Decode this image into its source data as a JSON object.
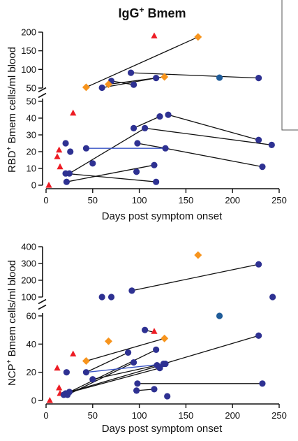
{
  "title": {
    "main": "IgG",
    "superscript": "+",
    "suffix": " Bmem"
  },
  "colors": {
    "patient": "#2e3192",
    "patient_alt": "#1f5c99",
    "pair_line": "#3a54c6",
    "orange": "#f7941d",
    "red": "#ed1c24",
    "axis": "#111111"
  },
  "chart_data": [
    {
      "type": "scatter",
      "panel": "top",
      "ylabel_prefix": "RBD",
      "ylabel_sup": "+",
      "ylabel_suffix": " Bmem cells/ml blood",
      "xlabel": "Days post symptom onset",
      "xlim": [
        0,
        250
      ],
      "x_ticks": [
        "0",
        "50",
        "100",
        "150",
        "200",
        "250"
      ],
      "y_segments": [
        {
          "range": [
            0,
            50
          ],
          "ticks": [
            "0",
            "10",
            "20",
            "30",
            "40",
            "50"
          ]
        },
        {
          "range": [
            50,
            200
          ],
          "ticks": [
            "50",
            "100",
            "150",
            "200"
          ]
        }
      ],
      "markers": [
        {
          "shape": "triangle",
          "color": "red",
          "x": 3,
          "y": 0
        },
        {
          "shape": "triangle",
          "color": "red",
          "x": 12,
          "y": 17
        },
        {
          "shape": "triangle",
          "color": "red",
          "x": 14,
          "y": 21
        },
        {
          "shape": "triangle",
          "color": "red",
          "x": 15,
          "y": 11
        },
        {
          "shape": "triangle",
          "color": "red",
          "x": 29,
          "y": 43
        },
        {
          "shape": "triangle",
          "color": "red",
          "x": 116,
          "y": 190
        },
        {
          "shape": "circle",
          "color": "patient",
          "x": 21,
          "y": 25
        },
        {
          "shape": "circle",
          "color": "patient",
          "x": 21,
          "y": 7
        },
        {
          "shape": "circle",
          "color": "patient",
          "x": 22,
          "y": 2
        },
        {
          "shape": "circle",
          "color": "patient",
          "x": 25,
          "y": 7
        },
        {
          "shape": "circle",
          "color": "patient",
          "x": 26,
          "y": 20
        },
        {
          "shape": "circle",
          "color": "patient",
          "x": 43,
          "y": 22
        },
        {
          "shape": "circle",
          "color": "patient",
          "x": 50,
          "y": 13
        },
        {
          "shape": "circle",
          "color": "patient",
          "x": 60,
          "y": 51
        },
        {
          "shape": "circle",
          "color": "patient",
          "x": 70,
          "y": 69
        },
        {
          "shape": "circle",
          "color": "patient",
          "x": 91,
          "y": 91
        },
        {
          "shape": "circle",
          "color": "patient",
          "x": 94,
          "y": 59
        },
        {
          "shape": "circle",
          "color": "patient",
          "x": 94,
          "y": 34
        },
        {
          "shape": "circle",
          "color": "patient",
          "x": 97,
          "y": 8
        },
        {
          "shape": "circle",
          "color": "patient",
          "x": 98,
          "y": 25
        },
        {
          "shape": "circle",
          "color": "patient",
          "x": 106,
          "y": 34
        },
        {
          "shape": "circle",
          "color": "patient",
          "x": 116,
          "y": 12
        },
        {
          "shape": "circle",
          "color": "patient",
          "x": 118,
          "y": 2
        },
        {
          "shape": "circle",
          "color": "patient",
          "x": 118,
          "y": 77
        },
        {
          "shape": "circle",
          "color": "patient",
          "x": 122,
          "y": 41
        },
        {
          "shape": "circle",
          "color": "patient",
          "x": 128,
          "y": 22
        },
        {
          "shape": "circle",
          "color": "patient",
          "x": 131,
          "y": 42
        },
        {
          "shape": "circle",
          "color": "patient_alt",
          "x": 186,
          "y": 78
        },
        {
          "shape": "circle",
          "color": "patient",
          "x": 228,
          "y": 77
        },
        {
          "shape": "circle",
          "color": "patient",
          "x": 228,
          "y": 27
        },
        {
          "shape": "circle",
          "color": "patient",
          "x": 232,
          "y": 11
        },
        {
          "shape": "circle",
          "color": "patient",
          "x": 242,
          "y": 24
        },
        {
          "shape": "diamond",
          "color": "orange",
          "x": 43,
          "y": 52
        },
        {
          "shape": "diamond",
          "color": "orange",
          "x": 67,
          "y": 60
        },
        {
          "shape": "diamond",
          "color": "orange",
          "x": 127,
          "y": 80
        },
        {
          "shape": "diamond",
          "color": "orange",
          "x": 163,
          "y": 187
        }
      ],
      "lines": [
        {
          "color": "black",
          "from": [
            43,
            52
          ],
          "to": [
            163,
            187
          ]
        },
        {
          "color": "black",
          "from": [
            60,
            51
          ],
          "to": [
            118,
            77
          ]
        },
        {
          "color": "black",
          "from": [
            67,
            60
          ],
          "to": [
            127,
            80
          ]
        },
        {
          "color": "black",
          "from": [
            91,
            91
          ],
          "to": [
            228,
            77
          ]
        },
        {
          "color": "black",
          "from": [
            70,
            69
          ],
          "to": [
            94,
            59
          ]
        },
        {
          "color": "black",
          "from": [
            21,
            7
          ],
          "to": [
            118,
            2
          ]
        },
        {
          "color": "black",
          "from": [
            22,
            2
          ],
          "to": [
            116,
            12
          ]
        },
        {
          "color": "black",
          "from": [
            25,
            7
          ],
          "to": [
            106,
            34
          ]
        },
        {
          "color": "black",
          "from": [
            94,
            34
          ],
          "to": [
            122,
            41
          ]
        },
        {
          "color": "black",
          "from": [
            98,
            25
          ],
          "to": [
            128,
            22
          ]
        },
        {
          "color": "black",
          "from": [
            131,
            42
          ],
          "to": [
            228,
            27
          ]
        },
        {
          "color": "black",
          "from": [
            106,
            34
          ],
          "to": [
            242,
            24
          ]
        },
        {
          "color": "black",
          "from": [
            128,
            22
          ],
          "to": [
            232,
            11
          ]
        },
        {
          "color": "blue",
          "from": [
            43,
            22
          ],
          "to": [
            128,
            22
          ]
        }
      ]
    },
    {
      "type": "scatter",
      "panel": "bottom",
      "ylabel_prefix": "NCP",
      "ylabel_sup": "+",
      "ylabel_suffix": " Bmem cells/ml blood",
      "xlabel": "Days post symptom onset",
      "xlim": [
        0,
        250
      ],
      "x_ticks": [
        "0",
        "50",
        "100",
        "150",
        "200",
        "250"
      ],
      "y_segments": [
        {
          "range": [
            0,
            60
          ],
          "ticks": [
            "0",
            "20",
            "40",
            "60"
          ]
        },
        {
          "range": [
            100,
            400
          ],
          "ticks": [
            "100",
            "200",
            "300",
            "400"
          ]
        }
      ],
      "markers": [
        {
          "shape": "triangle",
          "color": "red",
          "x": 4,
          "y": 0
        },
        {
          "shape": "triangle",
          "color": "red",
          "x": 12,
          "y": 23
        },
        {
          "shape": "triangle",
          "color": "red",
          "x": 14,
          "y": 9
        },
        {
          "shape": "triangle",
          "color": "red",
          "x": 15,
          "y": 5
        },
        {
          "shape": "triangle",
          "color": "red",
          "x": 29,
          "y": 33
        },
        {
          "shape": "triangle",
          "color": "red",
          "x": 116,
          "y": 49
        },
        {
          "shape": "circle",
          "color": "patient",
          "x": 19,
          "y": 4
        },
        {
          "shape": "circle",
          "color": "patient",
          "x": 21,
          "y": 5
        },
        {
          "shape": "circle",
          "color": "patient",
          "x": 22,
          "y": 20
        },
        {
          "shape": "circle",
          "color": "patient",
          "x": 23,
          "y": 4
        },
        {
          "shape": "circle",
          "color": "patient",
          "x": 25,
          "y": 6
        },
        {
          "shape": "circle",
          "color": "patient",
          "x": 43,
          "y": 20
        },
        {
          "shape": "circle",
          "color": "patient",
          "x": 50,
          "y": 15
        },
        {
          "shape": "circle",
          "color": "patient",
          "x": 60,
          "y": 80
        },
        {
          "shape": "circle",
          "color": "patient",
          "x": 70,
          "y": 65
        },
        {
          "shape": "circle",
          "color": "patient",
          "x": 88,
          "y": 34
        },
        {
          "shape": "circle",
          "color": "patient",
          "x": 92,
          "y": 138
        },
        {
          "shape": "circle",
          "color": "patient",
          "x": 94,
          "y": 27
        },
        {
          "shape": "circle",
          "color": "patient",
          "x": 97,
          "y": 7
        },
        {
          "shape": "circle",
          "color": "patient",
          "x": 98,
          "y": 12
        },
        {
          "shape": "circle",
          "color": "patient",
          "x": 106,
          "y": 50
        },
        {
          "shape": "circle",
          "color": "patient",
          "x": 116,
          "y": 8
        },
        {
          "shape": "circle",
          "color": "patient",
          "x": 118,
          "y": 36
        },
        {
          "shape": "circle",
          "color": "patient",
          "x": 119,
          "y": 25
        },
        {
          "shape": "circle",
          "color": "patient",
          "x": 122,
          "y": 23
        },
        {
          "shape": "circle",
          "color": "patient",
          "x": 126,
          "y": 26
        },
        {
          "shape": "circle",
          "color": "patient",
          "x": 128,
          "y": 26
        },
        {
          "shape": "circle",
          "color": "patient",
          "x": 130,
          "y": 3
        },
        {
          "shape": "circle",
          "color": "patient_alt",
          "x": 186,
          "y": 60
        },
        {
          "shape": "circle",
          "color": "patient",
          "x": 228,
          "y": 295
        },
        {
          "shape": "circle",
          "color": "patient",
          "x": 228,
          "y": 46
        },
        {
          "shape": "circle",
          "color": "patient",
          "x": 232,
          "y": 12
        },
        {
          "shape": "circle",
          "color": "patient",
          "x": 243,
          "y": 90
        },
        {
          "shape": "diamond",
          "color": "orange",
          "x": 43,
          "y": 28
        },
        {
          "shape": "diamond",
          "color": "orange",
          "x": 67,
          "y": 42
        },
        {
          "shape": "diamond",
          "color": "orange",
          "x": 127,
          "y": 44
        },
        {
          "shape": "diamond",
          "color": "orange",
          "x": 163,
          "y": 350
        }
      ],
      "lines": [
        {
          "color": "black",
          "from": [
            92,
            138
          ],
          "to": [
            228,
            295
          ]
        },
        {
          "color": "black",
          "from": [
            106,
            50
          ],
          "to": [
            118,
            48
          ]
        },
        {
          "color": "black",
          "from": [
            43,
            28
          ],
          "to": [
            127,
            44
          ]
        },
        {
          "color": "black",
          "from": [
            19,
            4
          ],
          "to": [
            118,
            36
          ]
        },
        {
          "color": "black",
          "from": [
            21,
            5
          ],
          "to": [
            122,
            23
          ]
        },
        {
          "color": "black",
          "from": [
            23,
            4
          ],
          "to": [
            94,
            27
          ]
        },
        {
          "color": "black",
          "from": [
            25,
            6
          ],
          "to": [
            128,
            26
          ]
        },
        {
          "color": "black",
          "from": [
            43,
            20
          ],
          "to": [
            88,
            34
          ]
        },
        {
          "color": "black",
          "from": [
            50,
            15
          ],
          "to": [
            119,
            25
          ]
        },
        {
          "color": "black",
          "from": [
            98,
            12
          ],
          "to": [
            232,
            12
          ]
        },
        {
          "color": "black",
          "from": [
            97,
            7
          ],
          "to": [
            116,
            8
          ]
        },
        {
          "color": "black",
          "from": [
            126,
            26
          ],
          "to": [
            228,
            46
          ]
        },
        {
          "color": "blue",
          "from": [
            43,
            20
          ],
          "to": [
            128,
            26
          ]
        }
      ]
    }
  ]
}
